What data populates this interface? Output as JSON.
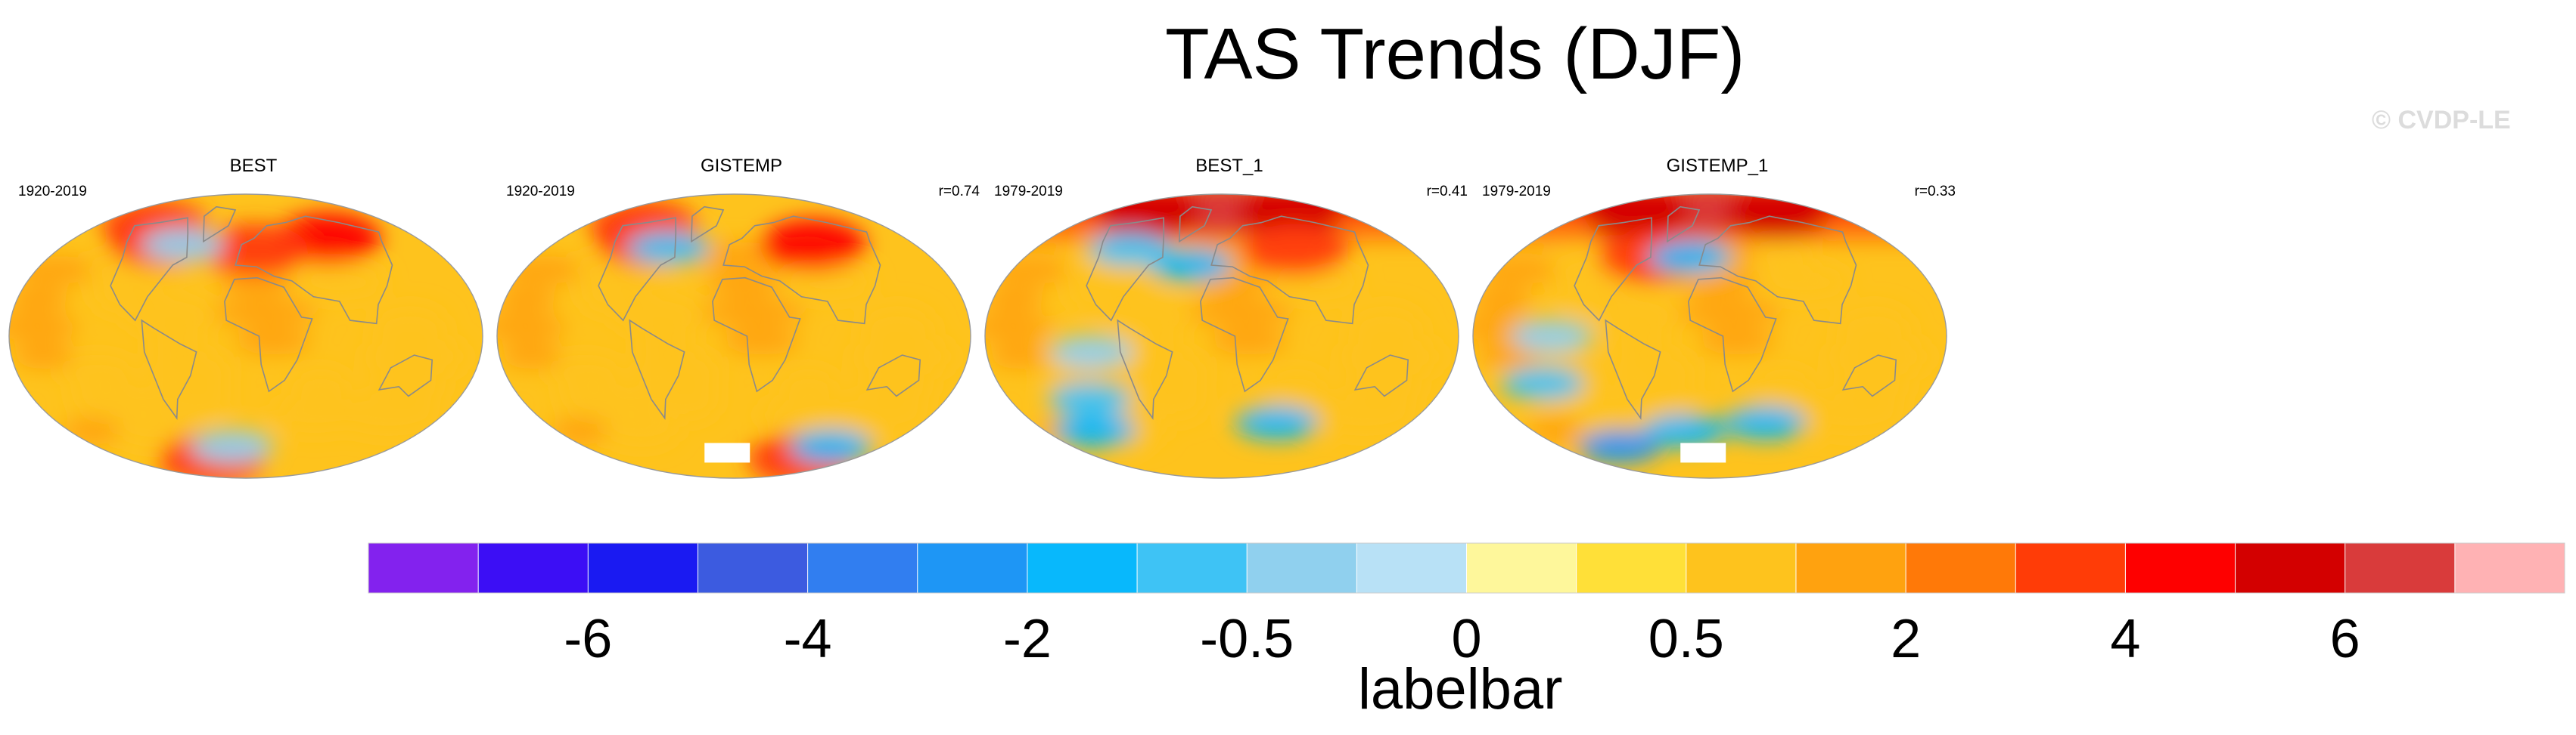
{
  "title": "TAS Trends (DJF)",
  "watermark": "© CVDP-LE",
  "chart_data": {
    "type": "heatmap",
    "title": "TAS Trends (DJF)",
    "projection": "robinson",
    "panels": [
      {
        "name": "BEST",
        "period": "1920-2019",
        "correlation": "",
        "hot_spots": [
          [
            -100,
            60,
            3.5
          ],
          [
            100,
            62,
            4.5
          ],
          [
            10,
            55,
            3
          ],
          [
            -130,
            70,
            3.5
          ],
          [
            -60,
            -78,
            3.5
          ]
        ],
        "cool_spots": [
          [
            -72,
            58,
            -0.5
          ],
          [
            -20,
            -70,
            -0.5
          ]
        ]
      },
      {
        "name": "GISTEMP",
        "period": "1920-2019",
        "correlation": "r=0.74",
        "hot_spots": [
          [
            -100,
            60,
            3.5
          ],
          [
            90,
            58,
            4
          ],
          [
            -130,
            70,
            3
          ],
          [
            120,
            -78,
            3.5
          ]
        ],
        "cool_spots": [
          [
            -72,
            56,
            -1
          ],
          [
            140,
            -70,
            -1.5
          ]
        ]
      },
      {
        "name": "BEST_1",
        "period": "1979-2019",
        "correlation": "r=0.41",
        "hot_spots": [
          [
            0,
            80,
            6
          ],
          [
            -130,
            78,
            5
          ],
          [
            120,
            78,
            5
          ],
          [
            80,
            55,
            3
          ]
        ],
        "cool_spots": [
          [
            -100,
            -10,
            -0.5
          ],
          [
            -120,
            -40,
            -1
          ],
          [
            60,
            -55,
            -2
          ],
          [
            -150,
            -60,
            -1.5
          ],
          [
            -30,
            45,
            -2
          ],
          [
            -100,
            55,
            -1
          ]
        ]
      },
      {
        "name": "GISTEMP_1",
        "period": "1979-2019",
        "correlation": "r=0.33",
        "hot_spots": [
          [
            0,
            80,
            6
          ],
          [
            -130,
            78,
            5
          ],
          [
            120,
            78,
            5
          ],
          [
            -60,
            50,
            3
          ]
        ],
        "cool_spots": [
          [
            -120,
            0,
            -0.5
          ],
          [
            -140,
            -30,
            -1
          ],
          [
            60,
            -55,
            -2
          ],
          [
            -30,
            -60,
            -2
          ],
          [
            -20,
            50,
            -1.5
          ],
          [
            -130,
            -70,
            -2.5
          ]
        ]
      }
    ],
    "colorbar": {
      "label": "labelbar",
      "colors": [
        "#8322ee",
        "#3c0ef5",
        "#1a1af2",
        "#3c5be0",
        "#317ef0",
        "#1e96f5",
        "#08b8fc",
        "#3ec3f5",
        "#90d0ee",
        "#b8e1f6",
        "#fef79b",
        "#ffe038",
        "#fec31d",
        "#ffa20f",
        "#ff7908",
        "#ff3c07",
        "#fe0000",
        "#d30000",
        "#d93b3b",
        "#ffb2b4"
      ],
      "tick_labels": [
        "-6",
        "-4",
        "-2",
        "-0.5",
        "0",
        "0.5",
        "2",
        "4",
        "6"
      ],
      "tick_boundaries": [
        2,
        4,
        6,
        8,
        10,
        12,
        14,
        16,
        18
      ]
    }
  }
}
